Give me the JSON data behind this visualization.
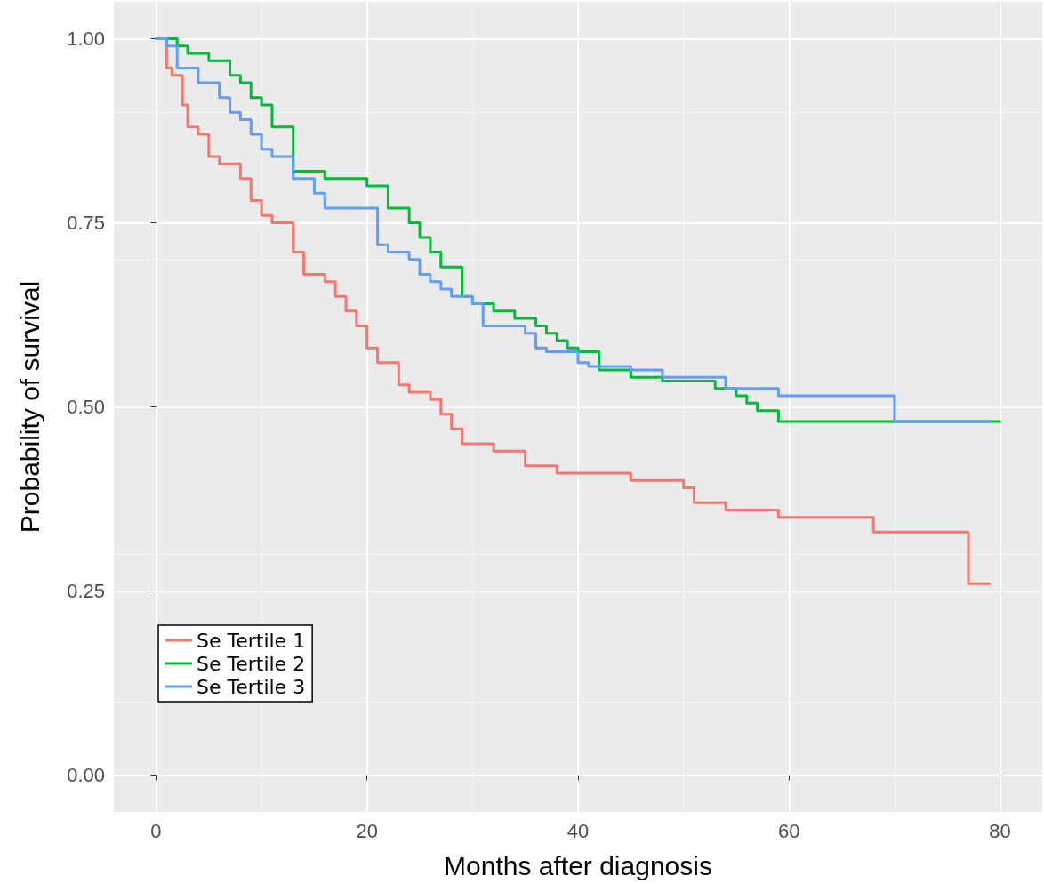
{
  "chart_data": {
    "type": "step",
    "xlabel": "Months after diagnosis",
    "ylabel": "Probability of survival",
    "xlim": [
      -4,
      84
    ],
    "xticks": [
      0,
      20,
      40,
      60,
      80
    ],
    "ylim": [
      -0.05,
      1.05
    ],
    "yticks": [
      {
        "value": 0,
        "label": "0.00"
      },
      {
        "value": 0.25,
        "label": "0.25"
      },
      {
        "value": 0.5,
        "label": "0.50"
      },
      {
        "value": 0.75,
        "label": "0.75"
      },
      {
        "value": 1,
        "label": "1.00"
      }
    ],
    "grid": true,
    "legend": "bottom left",
    "marker": "none",
    "line_style": "solid",
    "series": [
      {
        "name": "Se Tertile 1",
        "color": "#f8766d",
        "x": [
          0,
          1,
          1.5,
          2.5,
          3,
          4,
          5,
          6,
          8,
          9,
          10,
          11,
          13,
          14,
          16,
          17,
          18,
          19,
          20,
          21,
          23,
          24,
          26,
          27,
          28,
          29,
          32,
          35,
          38,
          45,
          50,
          51,
          54,
          59,
          68,
          77,
          79
        ],
        "values": [
          1,
          0.96,
          0.95,
          0.91,
          0.88,
          0.87,
          0.84,
          0.83,
          0.81,
          0.78,
          0.76,
          0.75,
          0.71,
          0.68,
          0.67,
          0.65,
          0.63,
          0.61,
          0.58,
          0.56,
          0.53,
          0.52,
          0.51,
          0.49,
          0.47,
          0.45,
          0.44,
          0.42,
          0.41,
          0.4,
          0.39,
          0.37,
          0.36,
          0.35,
          0.33,
          0.26,
          0.26
        ]
      },
      {
        "name": "Se Tertile 2",
        "color": "#00ba38",
        "x": [
          0,
          2,
          3,
          5,
          7,
          8,
          9,
          10,
          11,
          13,
          16,
          20,
          22,
          24,
          25,
          26,
          27,
          29,
          30,
          32,
          34,
          36,
          37,
          38,
          39,
          40,
          42,
          45,
          48,
          53,
          55,
          56,
          57,
          59,
          80
        ],
        "values": [
          1,
          0.99,
          0.98,
          0.97,
          0.95,
          0.94,
          0.92,
          0.91,
          0.88,
          0.82,
          0.81,
          0.8,
          0.77,
          0.75,
          0.73,
          0.71,
          0.69,
          0.65,
          0.64,
          0.63,
          0.62,
          0.61,
          0.6,
          0.59,
          0.58,
          0.575,
          0.55,
          0.54,
          0.535,
          0.525,
          0.515,
          0.505,
          0.495,
          0.48,
          0.48
        ]
      },
      {
        "name": "Se Tertile 3",
        "color": "#619cff",
        "x": [
          0,
          1,
          2,
          4,
          6,
          7,
          8,
          9,
          10,
          11,
          13,
          15,
          16,
          21,
          22,
          24,
          25,
          26,
          27,
          28,
          30,
          31,
          35,
          36,
          37,
          40,
          41,
          45,
          48,
          54,
          59,
          70,
          79
        ],
        "values": [
          1,
          0.99,
          0.96,
          0.94,
          0.92,
          0.9,
          0.89,
          0.87,
          0.85,
          0.84,
          0.81,
          0.79,
          0.77,
          0.72,
          0.71,
          0.7,
          0.68,
          0.67,
          0.66,
          0.65,
          0.64,
          0.61,
          0.6,
          0.58,
          0.575,
          0.56,
          0.555,
          0.55,
          0.54,
          0.525,
          0.515,
          0.48,
          0.48
        ]
      }
    ]
  }
}
